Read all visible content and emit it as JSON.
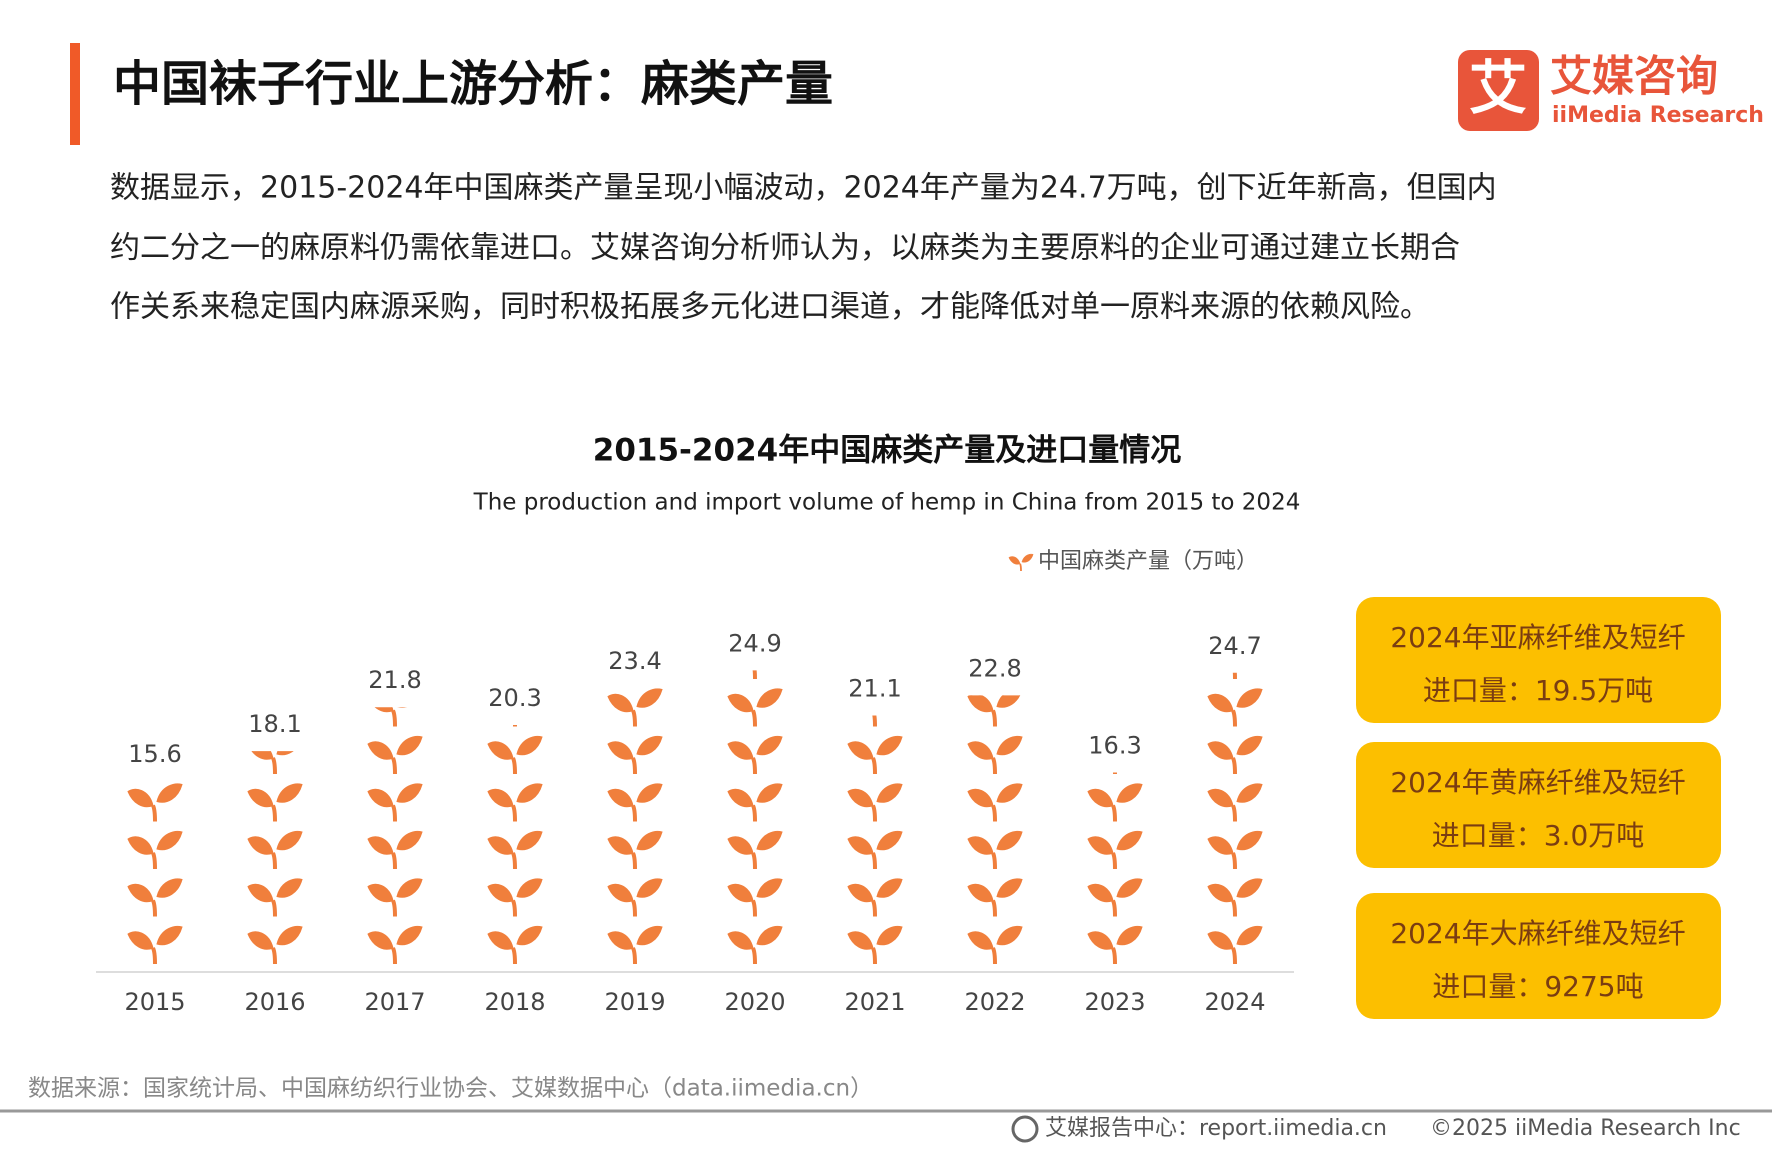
{
  "header": {
    "title": "中国袜子行业上游分析：麻类产量",
    "logo_cn": "艾媒咨询",
    "logo_en": "iiMedia Research"
  },
  "paragraph": [
    "数据显示，2015-2024年中国麻类产量呈现小幅波动，2024年产量为24.7万吨，创下近年新高，但国内",
    "约二分之一的麻原料仍需依靠进口。艾媒咨询分析师认为，以麻类为主要原料的企业可通过建立长期合",
    "作关系来稳定国内麻源采购，同时积极拓展多元化进口渠道，才能降低对单一原料来源的依赖风险。"
  ],
  "chart_data": {
    "type": "pictograph",
    "title": "2015-2024年中国麻类产量及进口量情况",
    "subtitle": "The production and import volume of hemp in China from 2015 to 2024",
    "categories": [
      "2015",
      "2016",
      "2017",
      "2018",
      "2019",
      "2020",
      "2021",
      "2022",
      "2023",
      "2024"
    ],
    "series": [
      {
        "name": "中国麻类产量（万吨）",
        "color": "#f07f3c",
        "values": [
          15.6,
          18.1,
          21.8,
          20.3,
          23.4,
          24.9,
          21.1,
          22.8,
          16.3,
          24.7
        ]
      }
    ]
  },
  "highlights": [
    {
      "line1": "2024年亚麻纤维及短纤",
      "line2": "进口量：19.5万吨"
    },
    {
      "line1": "2024年黄麻纤维及短纤",
      "line2": "进口量：3.0万吨"
    },
    {
      "line1": "2024年大麻纤维及短纤",
      "line2": "进口量：9275吨"
    }
  ],
  "source": "数据来源：国家统计局、中国麻纺织行业协会、艾媒数据中心（data.iimedia.cn）",
  "footer": {
    "center": "艾媒报告中心：report.iimedia.cn",
    "copyright": "©2025  iiMedia Research  Inc"
  }
}
